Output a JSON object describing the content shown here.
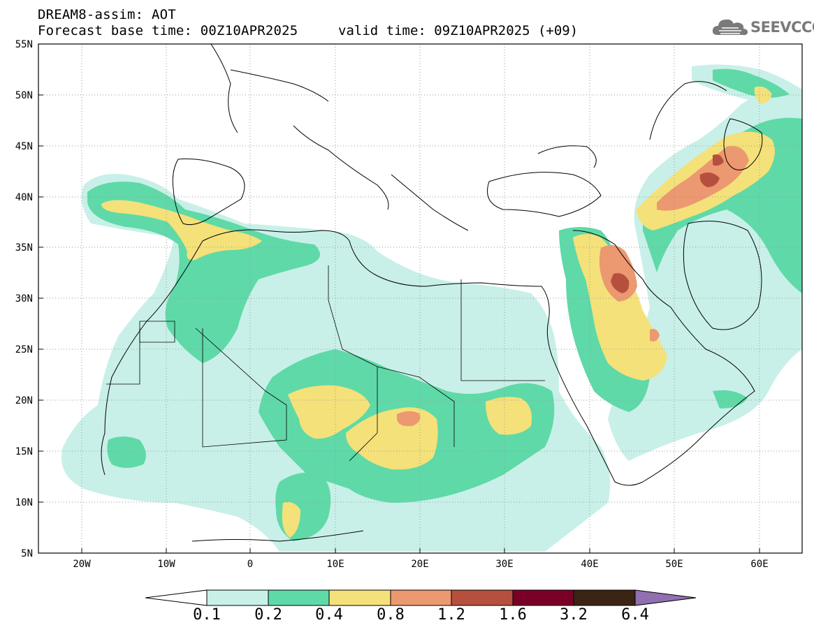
{
  "header": {
    "line1": "DREAM8-assim: AOT",
    "base_time": "Forecast base time: 00Z10APR2025",
    "valid_time": "valid time: 09Z10APR2025 (+09)"
  },
  "logo": {
    "text": "SEEVCCC",
    "icon": "cloud-icon",
    "color": "#7a7a7a"
  },
  "map": {
    "lon_range": [
      -25,
      65
    ],
    "lat_range": [
      5,
      55
    ],
    "lat_labels": [
      "55N",
      "50N",
      "45N",
      "40N",
      "35N",
      "30N",
      "25N",
      "20N",
      "15N",
      "10N",
      "5N"
    ],
    "lon_labels": [
      "20W",
      "10W",
      "0",
      "10E",
      "20E",
      "30E",
      "40E",
      "50E",
      "60E"
    ],
    "gridlines": "dotted"
  },
  "colorbar": {
    "levels": [
      "0.1",
      "0.2",
      "0.4",
      "0.8",
      "1.2",
      "1.6",
      "3.2",
      "6.4"
    ],
    "colors": [
      "#c8f0e8",
      "#5fd9a8",
      "#f4e17a",
      "#ec9870",
      "#b5503e",
      "#7a0028",
      "#3c2414",
      "#9070b0"
    ]
  }
}
